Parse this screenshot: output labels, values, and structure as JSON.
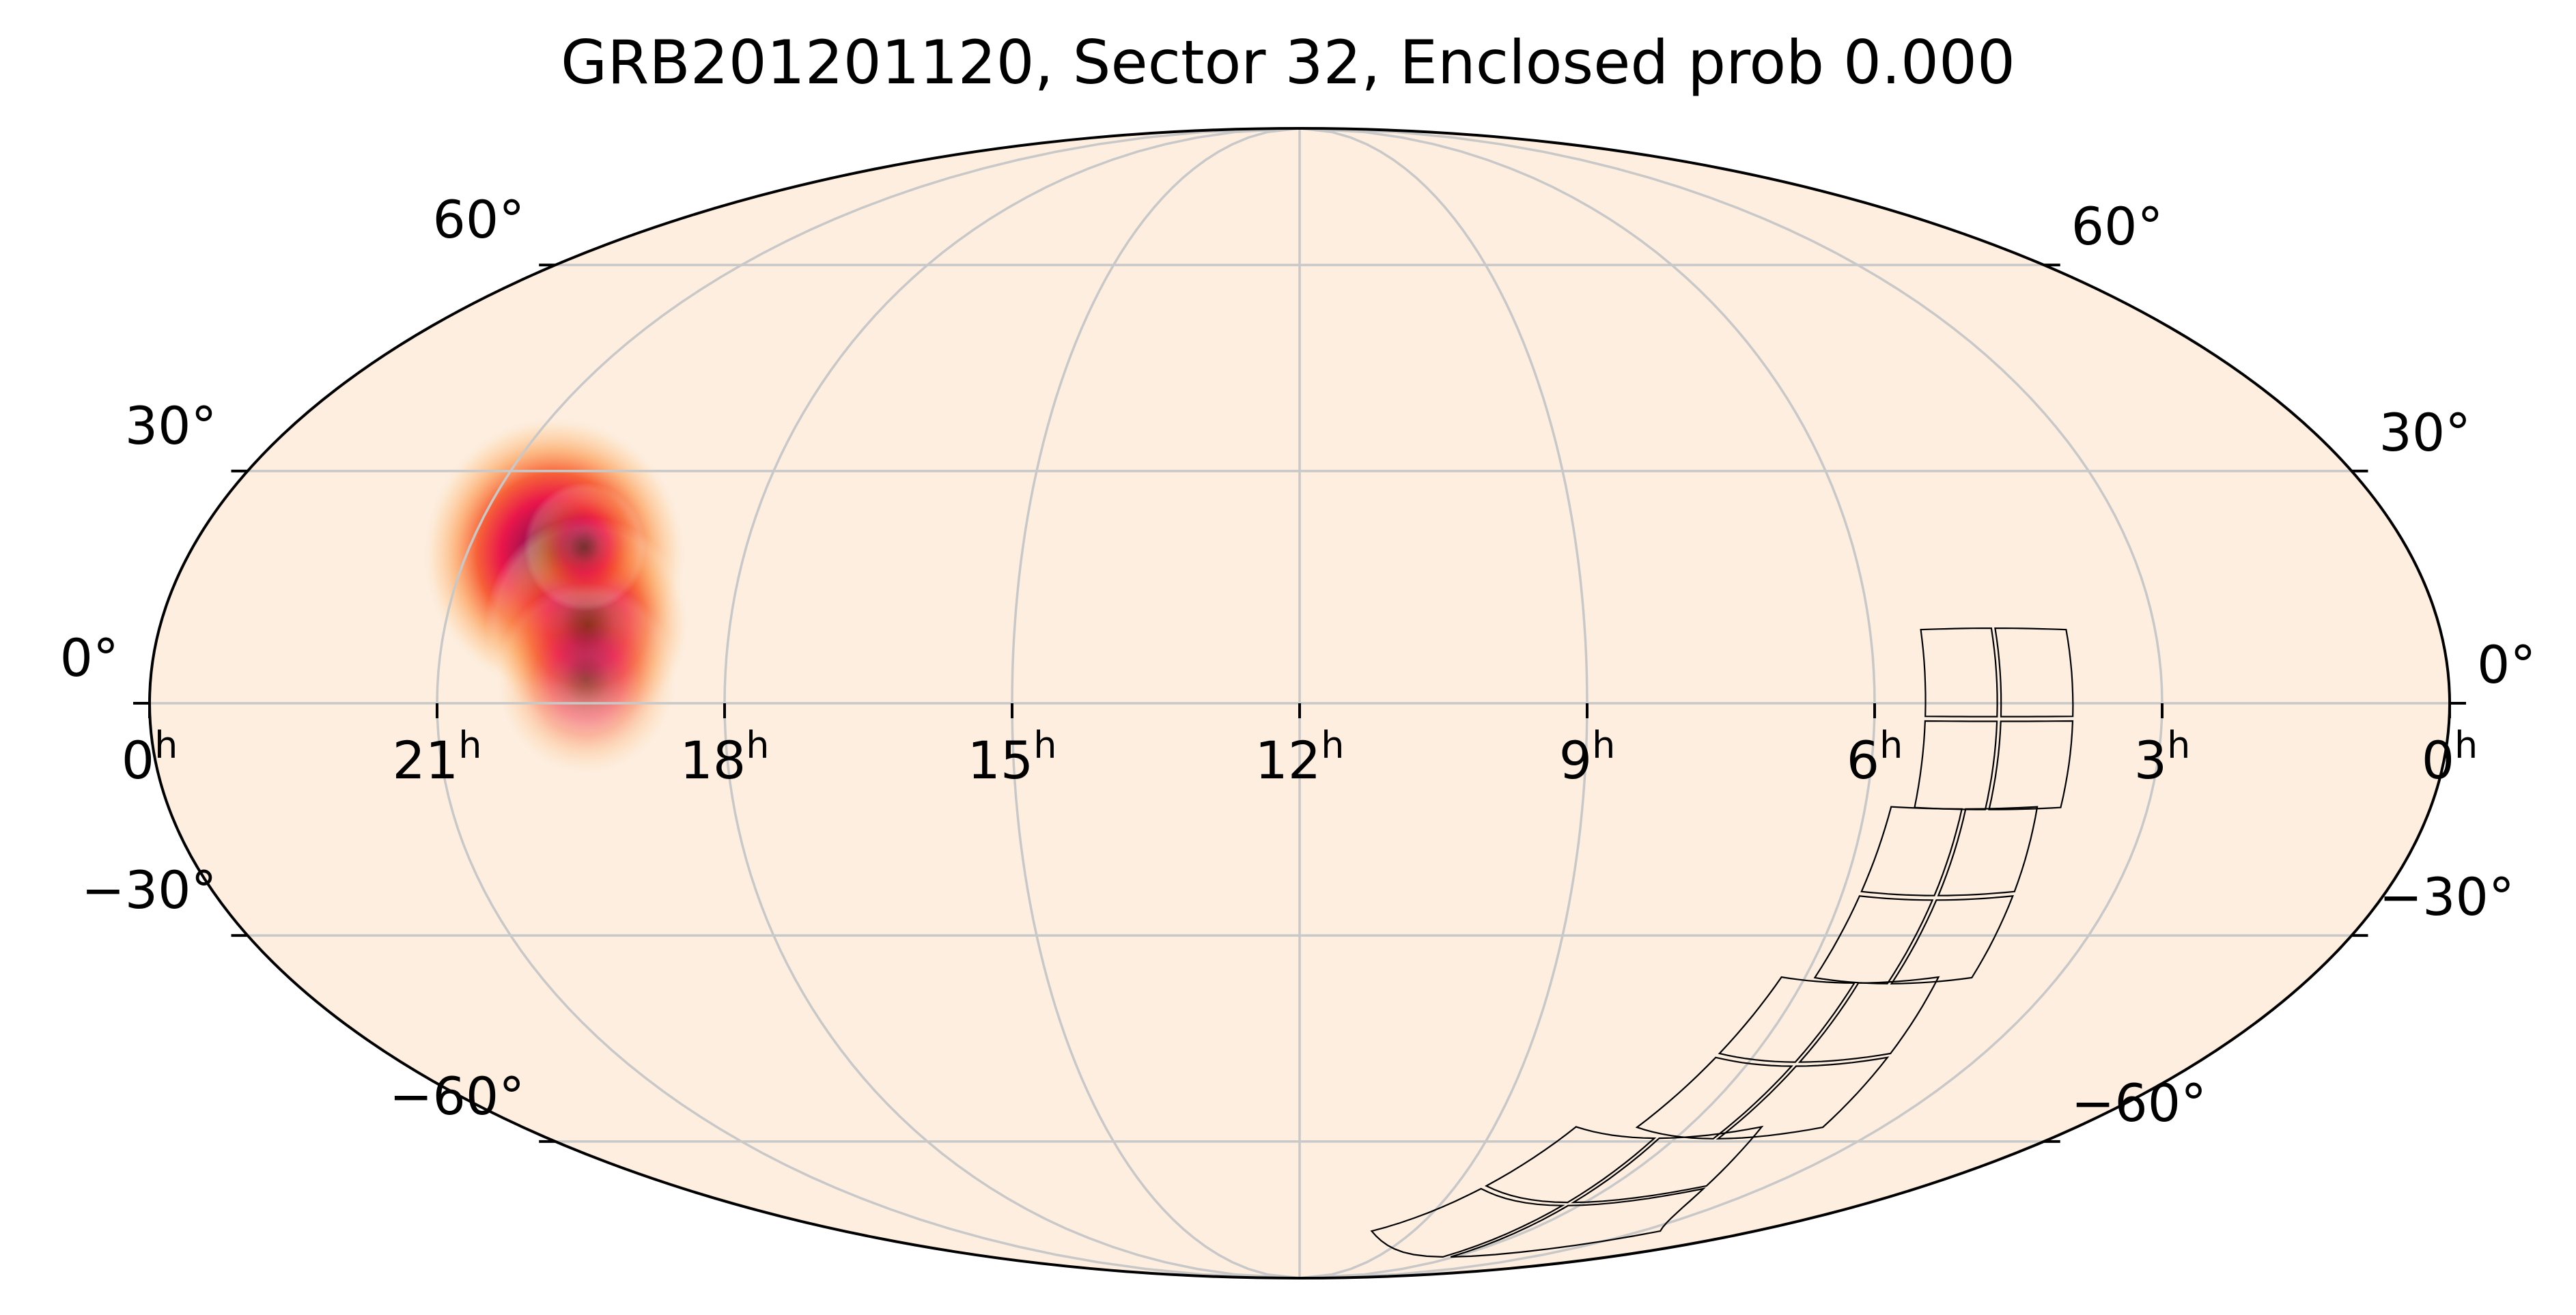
{
  "chart_data": {
    "type": "heatmap",
    "projection": "mollweide",
    "title": "GRB201201120, Sector 32, Enclosed prob 0.000",
    "ra_ticks": [
      {
        "label": "0",
        "sup": "h",
        "ra_hours": 24
      },
      {
        "label": "21",
        "sup": "h",
        "ra_hours": 21
      },
      {
        "label": "18",
        "sup": "h",
        "ra_hours": 18
      },
      {
        "label": "15",
        "sup": "h",
        "ra_hours": 15
      },
      {
        "label": "12",
        "sup": "h",
        "ra_hours": 12
      },
      {
        "label": "9",
        "sup": "h",
        "ra_hours": 9
      },
      {
        "label": "6",
        "sup": "h",
        "ra_hours": 6
      },
      {
        "label": "3",
        "sup": "h",
        "ra_hours": 3
      },
      {
        "label": "0",
        "sup": "h",
        "ra_hours": 0
      }
    ],
    "dec_ticks": [
      {
        "label": "60°",
        "dec": 60
      },
      {
        "label": "30°",
        "dec": 30
      },
      {
        "label": "0°",
        "dec": 0
      },
      {
        "label": "−30°",
        "dec": -30
      },
      {
        "label": "−60°",
        "dec": -60
      }
    ],
    "grid": true,
    "background_color": "#fdeee0",
    "heatmap_colors": [
      "#fdeee0",
      "#fdd5a8",
      "#fca35d",
      "#f6582f",
      "#e9164a",
      "#b0124f",
      "#5a0a2e",
      "#1a0507"
    ],
    "probability_blobs": [
      {
        "ra_hours": 20.05,
        "dec": 19,
        "sigma_deg": 6.5,
        "weight": 1.0
      },
      {
        "ra_hours": 19.5,
        "dec": 10,
        "sigma_deg": 5.0,
        "weight": 0.75
      },
      {
        "ra_hours": 19.45,
        "dec": 3,
        "sigma_deg": 4.5,
        "weight": 0.4
      },
      {
        "ra_hours": 19.75,
        "dec": 20,
        "sigma_deg": 3.0,
        "weight": 0.5
      }
    ],
    "sector_footprint": {
      "label": "Sector 32",
      "camera_count": 4,
      "ccds_per_camera": 4,
      "field_width_deg": 24,
      "field_center_ra_hours": [
        4.7,
        4.95,
        5.35,
        6.3
      ],
      "field_center_dec": [
        -2,
        -25,
        -48,
        -71
      ]
    }
  }
}
